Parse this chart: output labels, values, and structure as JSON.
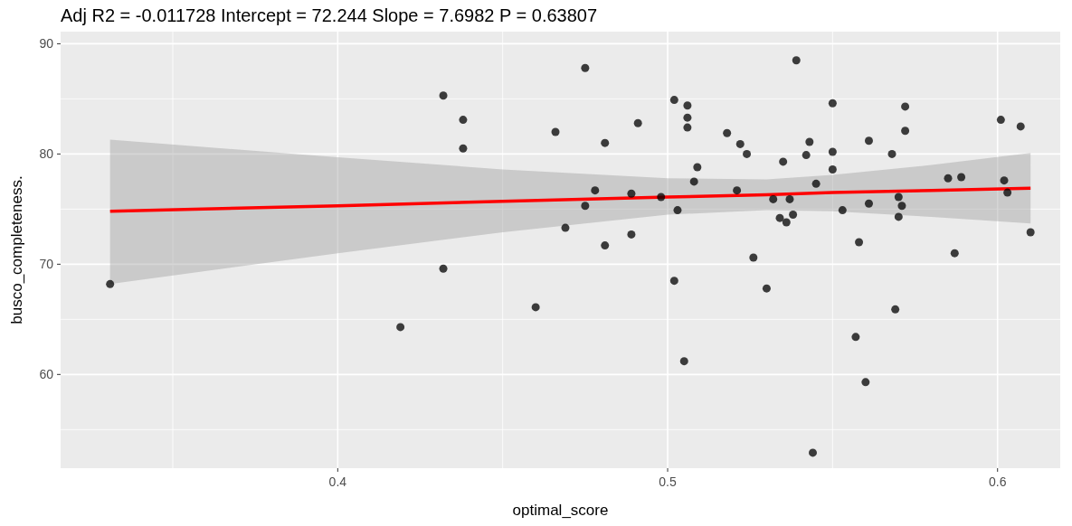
{
  "chart_data": {
    "type": "scatter",
    "title": "Adj R2 =  -0.011728 Intercept = 72.244  Slope = 7.6982  P = 0.63807",
    "xlabel": "optimal_score",
    "ylabel": "busco_completeness.",
    "xlim": [
      0.316,
      0.619
    ],
    "ylim": [
      51.5,
      91.1
    ],
    "xticks": [
      {
        "value": 0.35,
        "label": null
      },
      0.4,
      {
        "value": 0.45,
        "label": null
      },
      0.5,
      {
        "value": 0.55,
        "label": null
      },
      0.6
    ],
    "yticks": [
      {
        "value": 55,
        "label": null
      },
      60,
      {
        "value": 65,
        "label": null
      },
      70,
      {
        "value": 75,
        "label": null
      },
      80,
      {
        "value": 85,
        "label": null
      },
      90
    ],
    "grid": true,
    "marker": "circle",
    "series": [
      {
        "type": "line",
        "color": "#ff0000",
        "line_style": "solid",
        "marker": "none",
        "x": [
          0.331,
          0.4,
          0.45,
          0.5,
          0.53,
          0.55,
          0.58,
          0.61
        ],
        "values": [
          74.8,
          75.3,
          75.7,
          76.1,
          76.3,
          76.5,
          76.7,
          76.9
        ],
        "lower": [
          68.2,
          71.0,
          72.9,
          74.5,
          74.9,
          74.8,
          74.3,
          73.7
        ],
        "upper": [
          81.3,
          79.7,
          78.6,
          77.8,
          77.7,
          78.1,
          79.0,
          80.1
        ]
      },
      {
        "color": "#000000",
        "x": [
          0.331,
          0.419,
          0.432,
          0.432,
          0.438,
          0.438,
          0.46,
          0.466,
          0.469,
          0.475,
          0.475,
          0.478,
          0.481,
          0.481,
          0.489,
          0.489,
          0.491,
          0.498,
          0.502,
          0.502,
          0.503,
          0.505,
          0.506,
          0.506,
          0.506,
          0.508,
          0.509,
          0.518,
          0.521,
          0.522,
          0.524,
          0.526,
          0.53,
          0.532,
          0.534,
          0.535,
          0.536,
          0.537,
          0.538,
          0.539,
          0.542,
          0.543,
          0.544,
          0.545,
          0.55,
          0.55,
          0.55,
          0.553,
          0.557,
          0.558,
          0.56,
          0.561,
          0.561,
          0.568,
          0.569,
          0.57,
          0.57,
          0.571,
          0.572,
          0.572,
          0.585,
          0.587,
          0.589,
          0.601,
          0.602,
          0.603,
          0.607,
          0.61
        ],
        "values": [
          68.2,
          64.3,
          85.3,
          69.6,
          83.1,
          80.5,
          66.1,
          82.0,
          73.3,
          87.8,
          75.3,
          76.7,
          81.0,
          71.7,
          76.4,
          72.7,
          82.8,
          76.1,
          84.9,
          68.5,
          74.9,
          61.2,
          84.4,
          83.3,
          82.4,
          77.5,
          78.8,
          81.9,
          76.7,
          80.9,
          80.0,
          70.6,
          67.8,
          75.9,
          74.2,
          79.3,
          73.8,
          75.9,
          74.5,
          88.5,
          79.9,
          81.1,
          52.9,
          77.3,
          84.6,
          80.2,
          78.6,
          74.9,
          63.4,
          72.0,
          59.3,
          81.2,
          75.5,
          80.0,
          65.9,
          74.3,
          76.1,
          75.3,
          82.1,
          84.3,
          77.8,
          71.0,
          77.9,
          83.1,
          77.6,
          76.5,
          82.5,
          72.9
        ]
      }
    ]
  }
}
